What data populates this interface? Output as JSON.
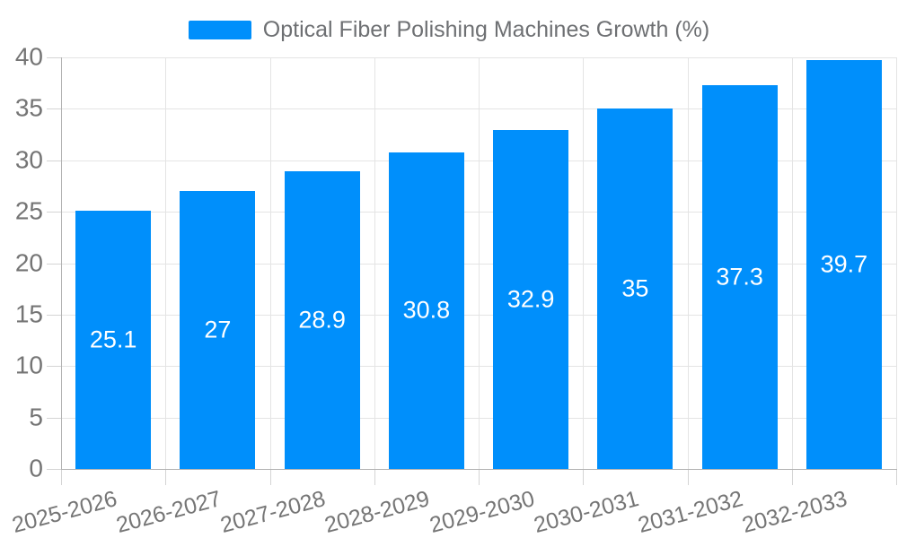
{
  "legend": {
    "label": "Optical Fiber Polishing Machines Growth (%)"
  },
  "chart_data": {
    "type": "bar",
    "title": "Optical Fiber Polishing Machines Growth (%)",
    "categories": [
      "2025-2026",
      "2026-2027",
      "2027-2028",
      "2028-2029",
      "2029-2030",
      "2030-2031",
      "2031-2032",
      "2032-2033"
    ],
    "series": [
      {
        "name": "Optical Fiber Polishing Machines Growth (%)",
        "values": [
          25.1,
          27,
          28.9,
          30.8,
          32.9,
          35,
          37.3,
          39.7
        ]
      }
    ],
    "value_labels": [
      "25.1",
      "27",
      "28.9",
      "30.8",
      "32.9",
      "35",
      "37.3",
      "39.7"
    ],
    "xlabel": "",
    "ylabel": "",
    "ylim": [
      0,
      40
    ],
    "yticks": [
      0,
      5,
      10,
      15,
      20,
      25,
      30,
      35,
      40
    ],
    "grid": true,
    "legend_position": "top",
    "value_label_position": "inside-center",
    "x_label_rotation_deg": -15,
    "colors": {
      "bar": "#008FFB",
      "grid": "#e4e4e4",
      "axis": "#b2b2b2",
      "tick": "#d4d4d4",
      "axis_label": "#757575",
      "legend_label": "#6e7073",
      "value_label": "#ffffff",
      "background": "#ffffff"
    }
  }
}
